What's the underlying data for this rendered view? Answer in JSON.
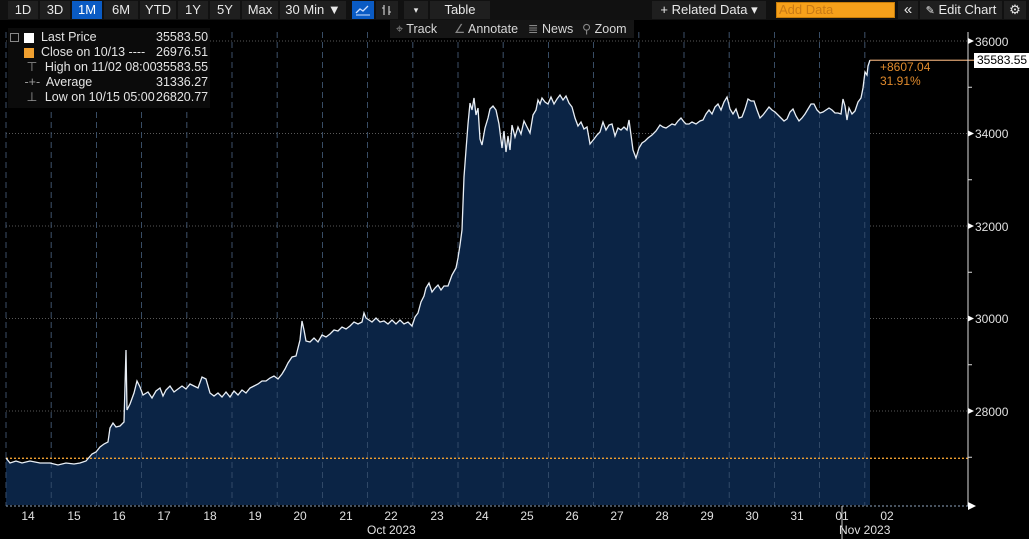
{
  "toolbar": {
    "ranges": [
      "1D",
      "3D",
      "1M",
      "6M",
      "YTD",
      "1Y",
      "5Y",
      "Max"
    ],
    "active_range": "1M",
    "interval": "30 Min ▼",
    "table_label": "Table",
    "related_data": "+ Related Data ▾",
    "add_data_placeholder": "Add Data",
    "collapse_icon": "«",
    "edit_chart": "Edit Chart",
    "settings_icon": "⚙"
  },
  "sub_toolbar": {
    "track": "Track",
    "annotate": "Annotate",
    "news": "News",
    "zoom": "Zoom"
  },
  "legend": [
    {
      "label": "Last Price",
      "value": "35583.50",
      "marker": "white-square"
    },
    {
      "label": "Close on 10/13 ----",
      "value": "26976.51",
      "marker": "orange-square"
    },
    {
      "label": "High on 11/02 08:00",
      "value": "35583.55",
      "marker": "high-icon"
    },
    {
      "label": "Average",
      "value": "31336.27",
      "marker": "average-icon"
    },
    {
      "label": "Low on 10/15 05:00",
      "value": "26820.77",
      "marker": "low-icon"
    }
  ],
  "price_tag": "35583.55",
  "change": {
    "abs": "+8607.04",
    "pct": "31.91%"
  },
  "colors": {
    "background": "#000000",
    "area_fill": "#0b2445",
    "line": "#e8eef5",
    "close_line": "#f0a030",
    "accent_active": "#0a5bc4",
    "add_data": "#f6a01a",
    "change_text": "#e08a2c"
  },
  "chart_data": {
    "type": "area",
    "title": "",
    "xlabel": "",
    "ylabel": "",
    "ylim": [
      26000,
      36500
    ],
    "y_ticks": [
      28000,
      30000,
      32000,
      34000,
      36000
    ],
    "x_ticks": [
      "14",
      "15",
      "16",
      "17",
      "18",
      "19",
      "20",
      "21",
      "22",
      "23",
      "24",
      "25",
      "26",
      "27",
      "28",
      "29",
      "30",
      "31",
      "01",
      "02"
    ],
    "x_month_labels": [
      "Oct 2023",
      "Nov 2023"
    ],
    "grid": true,
    "reference_line": {
      "label": "Close on 10/13",
      "value": 26976.51
    },
    "series": [
      {
        "name": "Last Price",
        "x": [
          "10/13",
          "10/14",
          "10/14 12:00",
          "10/15",
          "10/15 12:00",
          "10/16",
          "10/16 06:00",
          "10/16 12:00",
          "10/16 18:00",
          "10/17",
          "10/17 12:00",
          "10/18",
          "10/18 12:00",
          "10/19",
          "10/19 12:00",
          "10/20",
          "10/20 12:00",
          "10/21",
          "10/21 12:00",
          "10/22",
          "10/22 12:00",
          "10/23",
          "10/23 06:00",
          "10/23 12:00",
          "10/23 18:00",
          "10/24",
          "10/24 06:00",
          "10/24 12:00",
          "10/24 18:00",
          "10/25",
          "10/25 12:00",
          "10/26",
          "10/26 12:00",
          "10/27",
          "10/27 06:00",
          "10/27 12:00",
          "10/28",
          "10/28 12:00",
          "10/29",
          "10/29 12:00",
          "10/30",
          "10/30 12:00",
          "10/31",
          "10/31 12:00",
          "11/01",
          "11/01 12:00",
          "11/02",
          "11/02 08:00"
        ],
        "values": [
          26950,
          26880,
          26900,
          26870,
          26880,
          26950,
          27250,
          27700,
          28100,
          28450,
          28400,
          28400,
          28300,
          28330,
          28500,
          28700,
          29550,
          29700,
          30000,
          29900,
          29850,
          30700,
          30950,
          31900,
          34100,
          34300,
          33950,
          34100,
          34250,
          34200,
          34700,
          34750,
          34300,
          34150,
          34100,
          33700,
          34100,
          34200,
          34100,
          34400,
          34500,
          34300,
          34350,
          34500,
          34600,
          34400,
          35300,
          35583.5
        ]
      }
    ],
    "annotations": [
      {
        "text": "+8607.04",
        "color": "#e08a2c"
      },
      {
        "text": "31.91%",
        "color": "#e08a2c"
      },
      {
        "text": "35583.55",
        "type": "last-price-tag"
      }
    ]
  }
}
